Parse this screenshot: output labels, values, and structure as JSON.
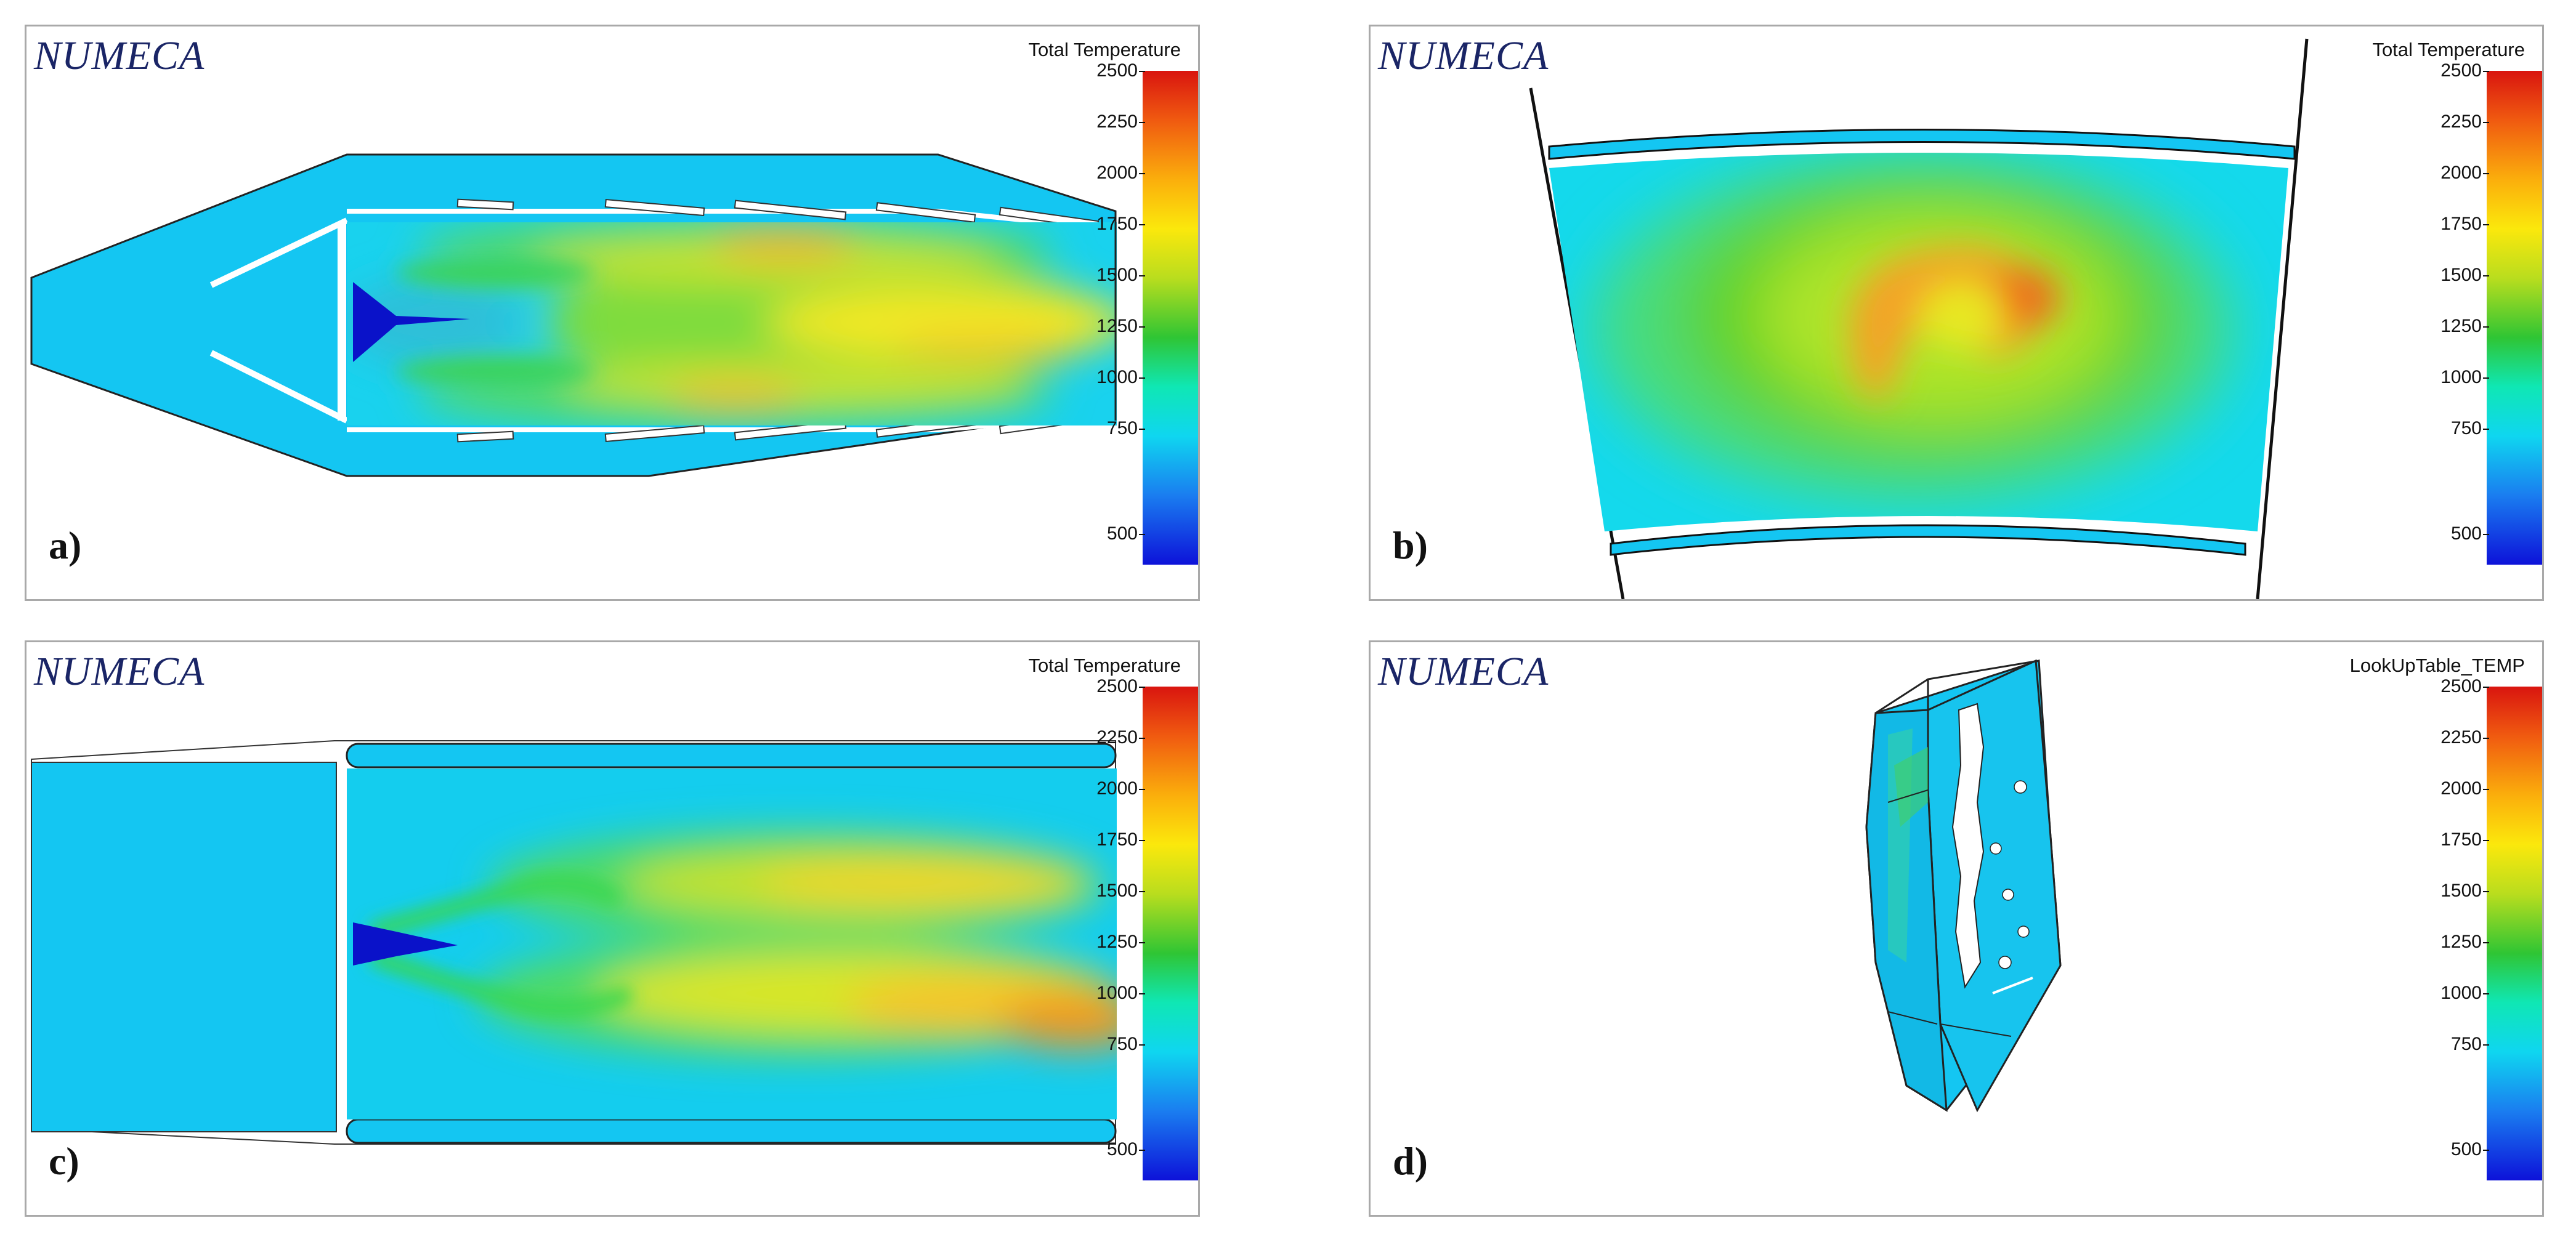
{
  "brand": "NUMECA",
  "colorbar": {
    "ticks": [
      "2500",
      "2250",
      "2000",
      "1750",
      "1500",
      "1250",
      "1000",
      "750",
      "500"
    ],
    "stops": [
      "#d9150f",
      "#f05a10",
      "#fbae0c",
      "#fbe80c",
      "#b9dd1e",
      "#2fc534",
      "#0fe7b4",
      "#0fd6f0",
      "#1a7df0",
      "#0d12d9"
    ]
  },
  "panels": [
    {
      "id": "a",
      "label": "a)",
      "title": "Total Temperature"
    },
    {
      "id": "b",
      "label": "b)",
      "title": "Total Temperature"
    },
    {
      "id": "c",
      "label": "c)",
      "title": "Total Temperature"
    },
    {
      "id": "d",
      "label": "d)",
      "title": "LookUpTable_TEMP"
    }
  ],
  "colors": {
    "fluid": "#14c6f2",
    "panel_border": "#a9a9a9",
    "brand": "#1a2566"
  }
}
